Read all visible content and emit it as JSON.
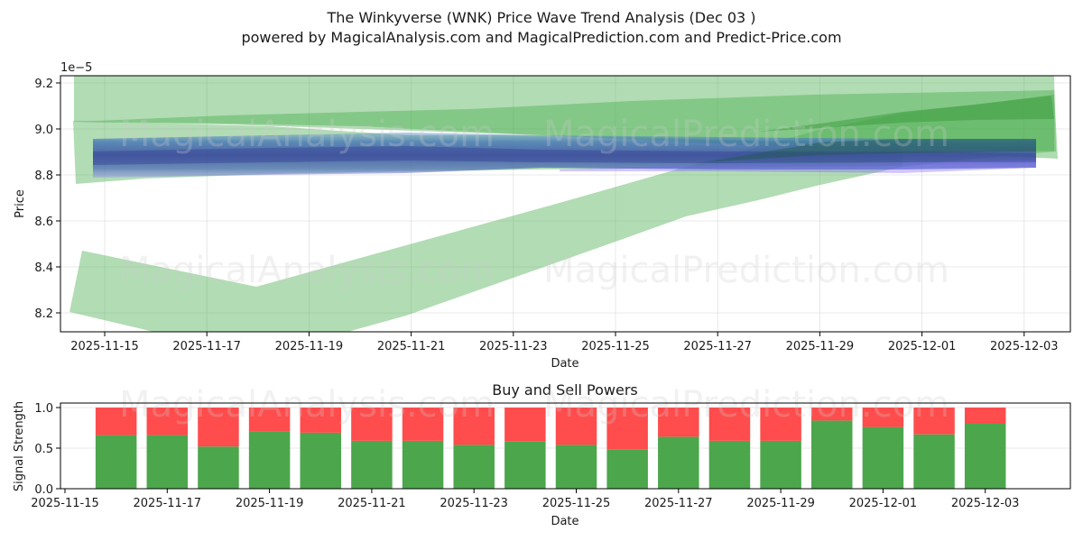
{
  "header": {
    "title": "The Winkyverse (WNK) Price Wave Trend Analysis (Dec 03 )",
    "subtitle": "powered by MagicalAnalysis.com and MagicalPrediction.com and Predict-Price.com"
  },
  "watermarks": [
    "MagicalAnalysis.com",
    "MagicalPrediction.com"
  ],
  "chart_data": [
    {
      "type": "area",
      "title": "The Winkyverse (WNK) Price Wave Trend Analysis (Dec 03 )",
      "xlabel": "Date",
      "ylabel": "Price",
      "y_scale_label": "1e−5",
      "ylim": [
        8.12,
        9.235
      ],
      "xticks": [
        "2025-11-15",
        "2025-11-17",
        "2025-11-19",
        "2025-11-21",
        "2025-11-23",
        "2025-11-25",
        "2025-11-27",
        "2025-11-29",
        "2025-12-01",
        "2025-12-03"
      ],
      "yticks": [
        "8.2",
        "8.4",
        "8.6",
        "8.8",
        "9.0",
        "9.2"
      ],
      "grid": true,
      "colors": {
        "wave_green": "#4CAF50",
        "wave_blue": "#3F5FB0",
        "wave_purple": "#7B5CFF"
      },
      "series": [
        {
          "name": "upper-green-band",
          "x": [
            "2025-11-14",
            "2025-12-03"
          ],
          "lower": [
            9.03,
            8.88
          ],
          "upper": [
            9.24,
            9.24
          ]
        },
        {
          "name": "mid-green-band",
          "x": [
            "2025-11-14",
            "2025-11-22",
            "2025-12-03"
          ],
          "lower": [
            9.03,
            8.98,
            8.89
          ],
          "upper": [
            9.03,
            9.09,
            9.16
          ]
        },
        {
          "name": "lower-green-wave",
          "x": [
            "2025-11-14",
            "2025-11-18",
            "2025-11-24",
            "2025-11-30",
            "2025-12-03"
          ],
          "lower": [
            8.2,
            8.06,
            8.38,
            8.78,
            8.86
          ],
          "upper": [
            8.47,
            8.31,
            8.68,
            9.0,
            9.14
          ]
        },
        {
          "name": "left-green-band",
          "x": [
            "2025-11-14",
            "2025-11-21"
          ],
          "lower": [
            8.76,
            8.82
          ],
          "upper": [
            9.03,
            8.98
          ]
        },
        {
          "name": "blue-wave-bundle",
          "x": [
            "2025-11-15",
            "2025-12-03"
          ],
          "lower": [
            8.79,
            8.84
          ],
          "upper": [
            8.96,
            8.95
          ]
        }
      ]
    },
    {
      "type": "bar",
      "title": "Buy and Sell Powers",
      "xlabel": "Date",
      "ylabel": "Signal Strength",
      "ylim": [
        0,
        1.05
      ],
      "yticks": [
        "0.0",
        "0.5",
        "1.0"
      ],
      "xticks": [
        "2025-11-15",
        "2025-11-17",
        "2025-11-19",
        "2025-11-21",
        "2025-11-23",
        "2025-11-25",
        "2025-11-27",
        "2025-11-29",
        "2025-12-01",
        "2025-12-03"
      ],
      "categories": [
        "2025-11-16",
        "2025-11-17",
        "2025-11-18",
        "2025-11-19",
        "2025-11-20",
        "2025-11-21",
        "2025-11-22",
        "2025-11-23",
        "2025-11-24",
        "2025-11-25",
        "2025-11-26",
        "2025-11-27",
        "2025-11-28",
        "2025-11-29",
        "2025-11-30",
        "2025-12-01",
        "2025-12-02",
        "2025-12-03"
      ],
      "series": [
        {
          "name": "Buy",
          "color": "#4CA64C",
          "values": [
            0.66,
            0.66,
            0.52,
            0.71,
            0.69,
            0.59,
            0.59,
            0.54,
            0.58,
            0.54,
            0.48,
            0.64,
            0.59,
            0.59,
            0.84,
            0.76,
            0.67,
            0.8
          ]
        },
        {
          "name": "Sell",
          "color": "#FF4C4C",
          "values": [
            0.34,
            0.34,
            0.48,
            0.29,
            0.31,
            0.41,
            0.41,
            0.46,
            0.42,
            0.46,
            0.52,
            0.36,
            0.41,
            0.41,
            0.16,
            0.24,
            0.33,
            0.2
          ]
        }
      ]
    }
  ]
}
